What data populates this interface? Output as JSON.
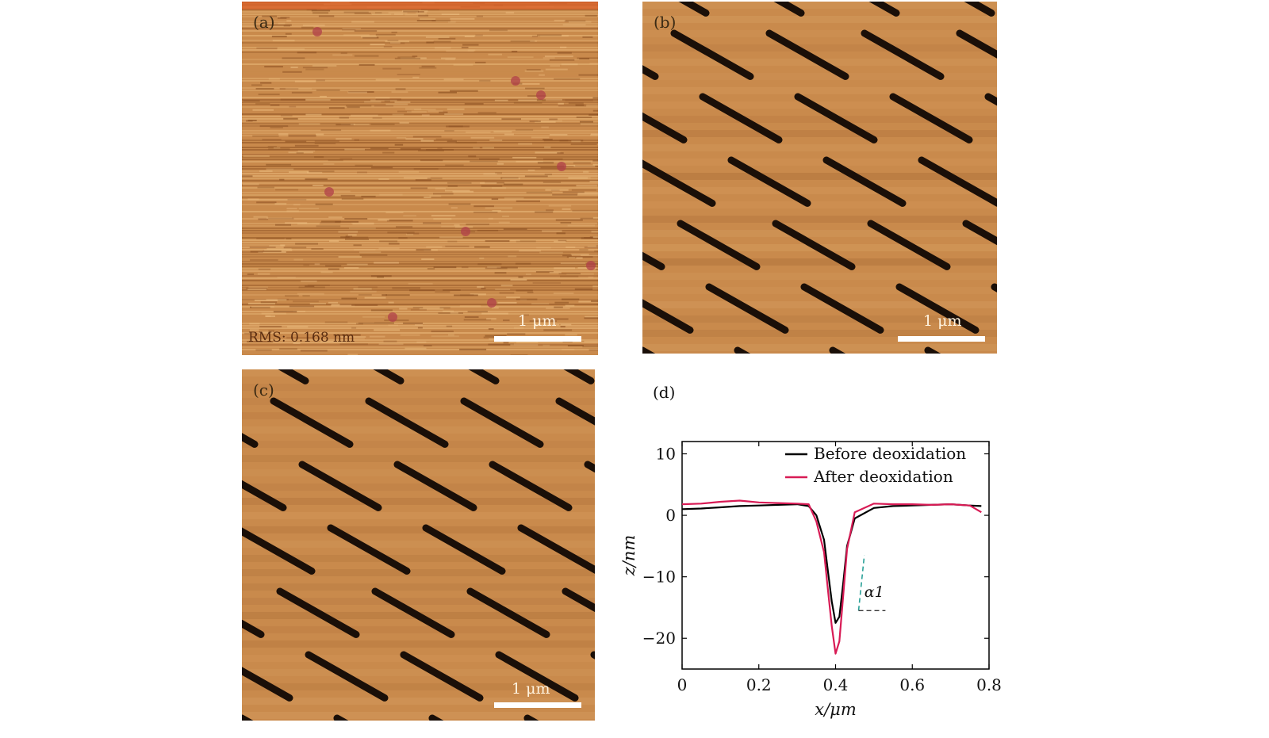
{
  "panels": {
    "a": {
      "label": "(a)",
      "scale": "1 μm",
      "rms": "RMS: 0.168 nm"
    },
    "b": {
      "label": "(b)",
      "scale": "1 μm"
    },
    "c": {
      "label": "(c)",
      "scale": "1 μm"
    },
    "d": {
      "label": "(d)"
    }
  },
  "colors": {
    "afm_base": "#c98a4c",
    "afm_dark": "#8e5223",
    "afm_light": "#e9b87a",
    "trench": "#1a0f08",
    "before": "#000000",
    "after": "#d81b55",
    "guide": "#2aa198"
  },
  "chart_data": {
    "type": "line",
    "xlabel": "x/μm",
    "ylabel": "z/nm",
    "xlim": [
      0,
      0.8
    ],
    "ylim": [
      -25,
      12
    ],
    "xticks": [
      0,
      0.2,
      0.4,
      0.6,
      0.8
    ],
    "xtick_labels": [
      "0",
      "0.2",
      "0.4",
      "0.6",
      "0.8"
    ],
    "yticks": [
      10,
      0,
      -10,
      -20
    ],
    "ytick_labels": [
      "10",
      "0",
      "−10",
      "−20"
    ],
    "legend_position": "top-right",
    "annotation": "α1",
    "series": [
      {
        "name": "Before deoxidation",
        "x": [
          0,
          0.05,
          0.1,
          0.15,
          0.2,
          0.25,
          0.3,
          0.33,
          0.35,
          0.37,
          0.38,
          0.39,
          0.4,
          0.41,
          0.42,
          0.43,
          0.45,
          0.5,
          0.55,
          0.6,
          0.65,
          0.7,
          0.75,
          0.78
        ],
        "y": [
          1.0,
          1.1,
          1.3,
          1.5,
          1.6,
          1.7,
          1.8,
          1.5,
          0.0,
          -4.0,
          -9.0,
          -14.0,
          -17.5,
          -16.5,
          -11.0,
          -5.0,
          -0.5,
          1.2,
          1.5,
          1.6,
          1.7,
          1.8,
          1.6,
          1.5
        ]
      },
      {
        "name": "After deoxidation",
        "x": [
          0,
          0.05,
          0.1,
          0.15,
          0.2,
          0.25,
          0.3,
          0.33,
          0.35,
          0.37,
          0.38,
          0.39,
          0.4,
          0.41,
          0.42,
          0.43,
          0.45,
          0.5,
          0.55,
          0.6,
          0.65,
          0.7,
          0.75,
          0.78
        ],
        "y": [
          1.8,
          1.9,
          2.2,
          2.4,
          2.1,
          2.0,
          1.9,
          1.8,
          -1.0,
          -6.0,
          -12.0,
          -18.0,
          -22.5,
          -20.5,
          -13.0,
          -5.5,
          0.5,
          1.9,
          1.8,
          1.8,
          1.7,
          1.8,
          1.6,
          0.5
        ]
      }
    ]
  }
}
